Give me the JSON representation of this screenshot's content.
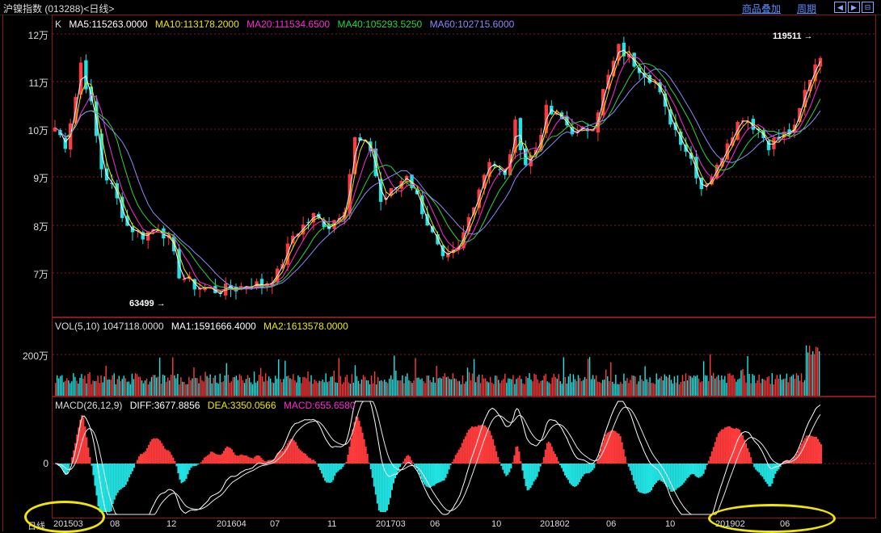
{
  "window": {
    "title": "沪镍指数 (013288)<日线>",
    "menu_overlay": "商品叠加",
    "menu_period": "周期",
    "nav_icons": [
      "prev-icon",
      "next-icon",
      "expand-icon"
    ]
  },
  "kline": {
    "label": "K",
    "ma5": "MA5:115263.0000",
    "ma10": "MA10:113178.2000",
    "ma20": "MA20:111534.6500",
    "ma40": "MA40:105293.5250",
    "ma60": "MA60:102715.6000",
    "y_ticks": [
      "12万",
      "11万",
      "10万",
      "9万",
      "8万",
      "7万"
    ],
    "high_annotation": "119511",
    "low_annotation": "63499"
  },
  "volume": {
    "label": "VOL(5,10) 1047118.0000",
    "ma1": "MA1:1591666.4000",
    "ma2": "MA2:1613578.0000",
    "y_tick": "200万"
  },
  "macd": {
    "label": "MACD(26,12,9)",
    "diff": "DIFF:3677.8856",
    "dea": "DEA:3350.0566",
    "value": "MACD:655.6580",
    "y_tick": "0"
  },
  "x_axis": {
    "period_label": "日线",
    "ticks": [
      "201503",
      "08",
      "12",
      "201604",
      "07",
      "11",
      "201703",
      "06",
      "10",
      "201802",
      "06",
      "10",
      "201902",
      "06"
    ]
  },
  "colors": {
    "up": "#ff3b3b",
    "down": "#22e3e3",
    "ma5": "#ffffff",
    "ma10": "#f2e600",
    "ma20": "#ff2bd6",
    "ma40": "#2bd63b",
    "ma60": "#8a8aff",
    "grid": "#8a1a1a",
    "highlight": "#f2e600"
  },
  "chart_data": {
    "type": "candlestick",
    "price_anchors": [
      [
        0,
        100500
      ],
      [
        2,
        97000
      ],
      [
        4,
        107000
      ],
      [
        5,
        114000
      ],
      [
        7,
        105000
      ],
      [
        9,
        92000
      ],
      [
        11,
        88000
      ],
      [
        14,
        80000
      ],
      [
        17,
        78000
      ],
      [
        20,
        80000
      ],
      [
        22,
        77000
      ],
      [
        24,
        70000
      ],
      [
        27,
        67500
      ],
      [
        31,
        66500
      ],
      [
        35,
        67000
      ],
      [
        38,
        68000
      ],
      [
        40,
        67500
      ],
      [
        43,
        70000
      ],
      [
        46,
        78000
      ],
      [
        50,
        82000
      ],
      [
        53,
        80000
      ],
      [
        56,
        84000
      ],
      [
        58,
        98000
      ],
      [
        61,
        96000
      ],
      [
        63,
        85000
      ],
      [
        66,
        88000
      ],
      [
        68,
        91000
      ],
      [
        70,
        86000
      ],
      [
        73,
        78000
      ],
      [
        75,
        72500
      ],
      [
        78,
        75000
      ],
      [
        81,
        85000
      ],
      [
        84,
        94000
      ],
      [
        87,
        90000
      ],
      [
        89,
        101000
      ],
      [
        91,
        93000
      ],
      [
        93,
        96000
      ],
      [
        95,
        104000
      ],
      [
        98,
        102000
      ],
      [
        101,
        99000
      ],
      [
        104,
        101000
      ],
      [
        106,
        108000
      ],
      [
        109,
        117000
      ],
      [
        111,
        115000
      ],
      [
        114,
        112000
      ],
      [
        116,
        110000
      ],
      [
        118,
        104000
      ],
      [
        120,
        100000
      ],
      [
        123,
        94000
      ],
      [
        125,
        88000
      ],
      [
        128,
        92000
      ],
      [
        130,
        98000
      ],
      [
        133,
        103000
      ],
      [
        136,
        100000
      ],
      [
        138,
        97000
      ],
      [
        141,
        99000
      ],
      [
        143,
        100000
      ],
      [
        145,
        108000
      ],
      [
        147,
        114000
      ],
      [
        148,
        119511
      ]
    ],
    "volume_level_wan": 70,
    "macd_range": [
      -2800,
      3200
    ]
  }
}
